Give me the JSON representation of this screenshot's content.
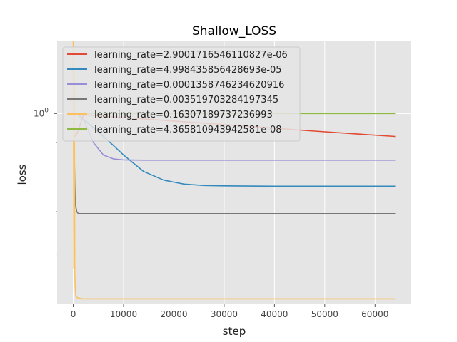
{
  "chart_data": {
    "type": "line",
    "title": "Shallow_LOSS",
    "xlabel": "step",
    "ylabel": "loss",
    "xlim": [
      -3200,
      67200
    ],
    "ylim": [
      0.5,
      1.3
    ],
    "yscale": "log",
    "xticks": [
      0,
      10000,
      20000,
      30000,
      40000,
      50000,
      60000
    ],
    "xtick_labels": [
      "0",
      "10000",
      "20000",
      "30000",
      "40000",
      "50000",
      "60000"
    ],
    "ytick_major": [
      1.0
    ],
    "ytick_major_labels": [
      "10^0"
    ],
    "ytick_minor": [
      0.6,
      0.7,
      0.8,
      0.9
    ],
    "grid": true,
    "legend_position": "upper-left",
    "style": "ggplot",
    "series": [
      {
        "name": "learning_rate=2.9001716546110827e-06",
        "color": "#E24A33",
        "x": [
          0,
          300,
          600,
          1000,
          2000,
          4000,
          8000,
          16000,
          24000,
          32000,
          40000,
          48000,
          56000,
          64000
        ],
        "y": [
          1.0,
          0.92,
          0.925,
          0.94,
          0.995,
          0.993,
          0.988,
          0.978,
          0.968,
          0.958,
          0.948,
          0.938,
          0.929,
          0.92
        ]
      },
      {
        "name": "learning_rate=4.998435856428693e-05",
        "color": "#348ABD",
        "x": [
          0,
          1000,
          2000,
          4000,
          6000,
          8000,
          10000,
          14000,
          18000,
          22000,
          26000,
          30000,
          40000,
          50000,
          64000
        ],
        "y": [
          1.0,
          0.995,
          0.98,
          0.95,
          0.92,
          0.89,
          0.86,
          0.81,
          0.785,
          0.774,
          0.77,
          0.769,
          0.768,
          0.768,
          0.768
        ]
      },
      {
        "name": "learning_rate=0.0001358746234620916",
        "color": "#988ED5",
        "x": [
          0,
          1000,
          2000,
          3000,
          4000,
          6000,
          8000,
          10000,
          14000,
          20000,
          30000,
          40000,
          50000,
          64000
        ],
        "y": [
          1.0,
          1.0,
          0.98,
          0.94,
          0.9,
          0.86,
          0.848,
          0.845,
          0.844,
          0.844,
          0.844,
          0.844,
          0.844,
          0.844
        ]
      },
      {
        "name": "learning_rate=0.003519703284197345",
        "color": "#777777",
        "x": [
          0,
          200,
          400,
          700,
          1000,
          2000,
          5000,
          20000,
          40000,
          64000
        ],
        "y": [
          1.2,
          0.85,
          0.72,
          0.7,
          0.695,
          0.695,
          0.695,
          0.695,
          0.695,
          0.695
        ]
      },
      {
        "name": "learning_rate=0.16307189737236993",
        "color": "#FBC15E",
        "x": [
          0,
          100,
          200,
          300,
          400,
          500,
          800,
          1200,
          2000,
          5000,
          20000,
          40000,
          64000
        ],
        "y": [
          1.3,
          0.57,
          1.15,
          0.56,
          0.53,
          0.515,
          0.512,
          0.511,
          0.51,
          0.51,
          0.51,
          0.51,
          0.51
        ]
      },
      {
        "name": "learning_rate=4.365810943942581e-08",
        "color": "#8EBA42",
        "x": [
          0,
          8000,
          16000,
          24000,
          32000,
          40000,
          48000,
          56000,
          64000
        ],
        "y": [
          1.0,
          1.0,
          1.0,
          1.0,
          1.0,
          1.0,
          1.0,
          1.0,
          1.0
        ]
      }
    ]
  }
}
